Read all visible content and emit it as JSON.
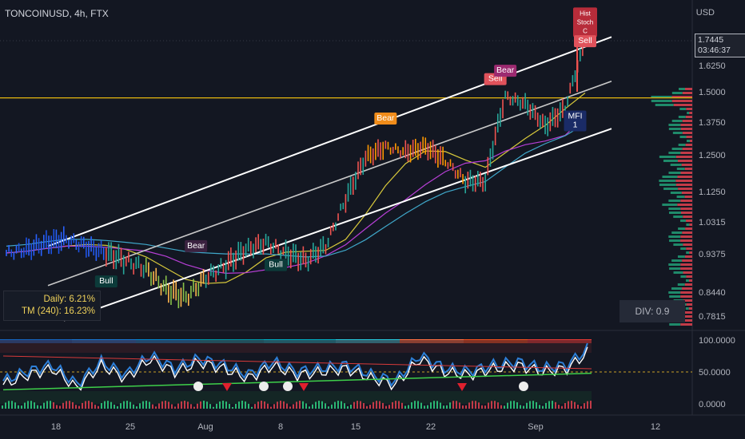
{
  "header": {
    "symbol": "TONCOINUSD, 4h, FTX",
    "currency": "USD"
  },
  "price_tag": {
    "price": "1.7445",
    "countdown": "03:46:37"
  },
  "performance": {
    "daily": "Daily: 6.21%",
    "tm": "TM (240): 16.23%"
  },
  "divergence_box": "DIV: 0.9",
  "colors": {
    "background": "#131722",
    "bull": "#26a69a",
    "bear": "#ef5350",
    "horizontal_line": "#e6b80e",
    "ma_yellow": "#d8c93b",
    "ma_purple": "#b73fd6",
    "ma_cyan": "#3fa7c9",
    "channel": "#ffffff",
    "label_bull": "#0c3b3a"
  },
  "chart_data": [
    {
      "type": "line",
      "name": "price",
      "x_ticks": [
        "18",
        "25",
        "Aug",
        "8",
        "15",
        "22",
        "Sep",
        "12"
      ],
      "y_ticks": [
        "1.6250",
        "1.5000",
        "1.3750",
        "1.2500",
        "1.1250",
        "1.0315",
        "0.9375",
        "0.8440",
        "0.7815"
      ],
      "ylim": [
        0.76,
        1.84
      ],
      "grid": false,
      "approx_close": {
        "x": [
          0,
          2,
          4,
          6,
          8,
          10,
          12,
          14,
          16,
          18,
          20,
          22,
          24,
          26,
          28,
          30,
          32,
          34,
          36,
          38,
          40,
          42,
          44,
          46,
          48,
          50,
          52,
          54,
          56,
          58
        ],
        "y": [
          0.94,
          0.95,
          0.97,
          0.98,
          0.96,
          0.94,
          0.92,
          0.9,
          0.85,
          0.83,
          0.88,
          0.91,
          0.95,
          0.97,
          0.94,
          0.92,
          0.96,
          1.1,
          1.24,
          1.28,
          1.26,
          1.28,
          1.23,
          1.16,
          1.16,
          1.48,
          1.45,
          1.36,
          1.43,
          1.74
        ]
      },
      "horizontal_line": 1.475,
      "labels": [
        {
          "text": "Bull",
          "x": 10,
          "y": 0.87
        },
        {
          "text": "Bear",
          "x": 19,
          "y": 0.96
        },
        {
          "text": "Bull",
          "x": 27,
          "y": 0.91
        },
        {
          "text": "Bear",
          "x": 38,
          "y": 1.39
        },
        {
          "text": "Sell",
          "x": 49,
          "y": 1.56
        },
        {
          "text": "Bear",
          "x": 50,
          "y": 1.6
        },
        {
          "text": "MFI\n1",
          "x": 57,
          "y": 1.38
        },
        {
          "text": "Hist\nStoch\nC",
          "x": 58,
          "y": 1.83
        },
        {
          "text": "Sell",
          "x": 58,
          "y": 1.74
        }
      ]
    },
    {
      "type": "line",
      "name": "oscillator",
      "y_ticks": [
        "100.0000",
        "50.0000",
        "0.0000"
      ],
      "ylim": [
        0,
        100
      ],
      "approx_values": [
        30,
        45,
        55,
        25,
        60,
        40,
        70,
        50,
        65,
        55,
        40,
        60,
        45,
        50,
        55,
        40,
        30,
        70,
        50,
        45,
        55,
        60,
        50,
        55,
        85
      ]
    }
  ]
}
